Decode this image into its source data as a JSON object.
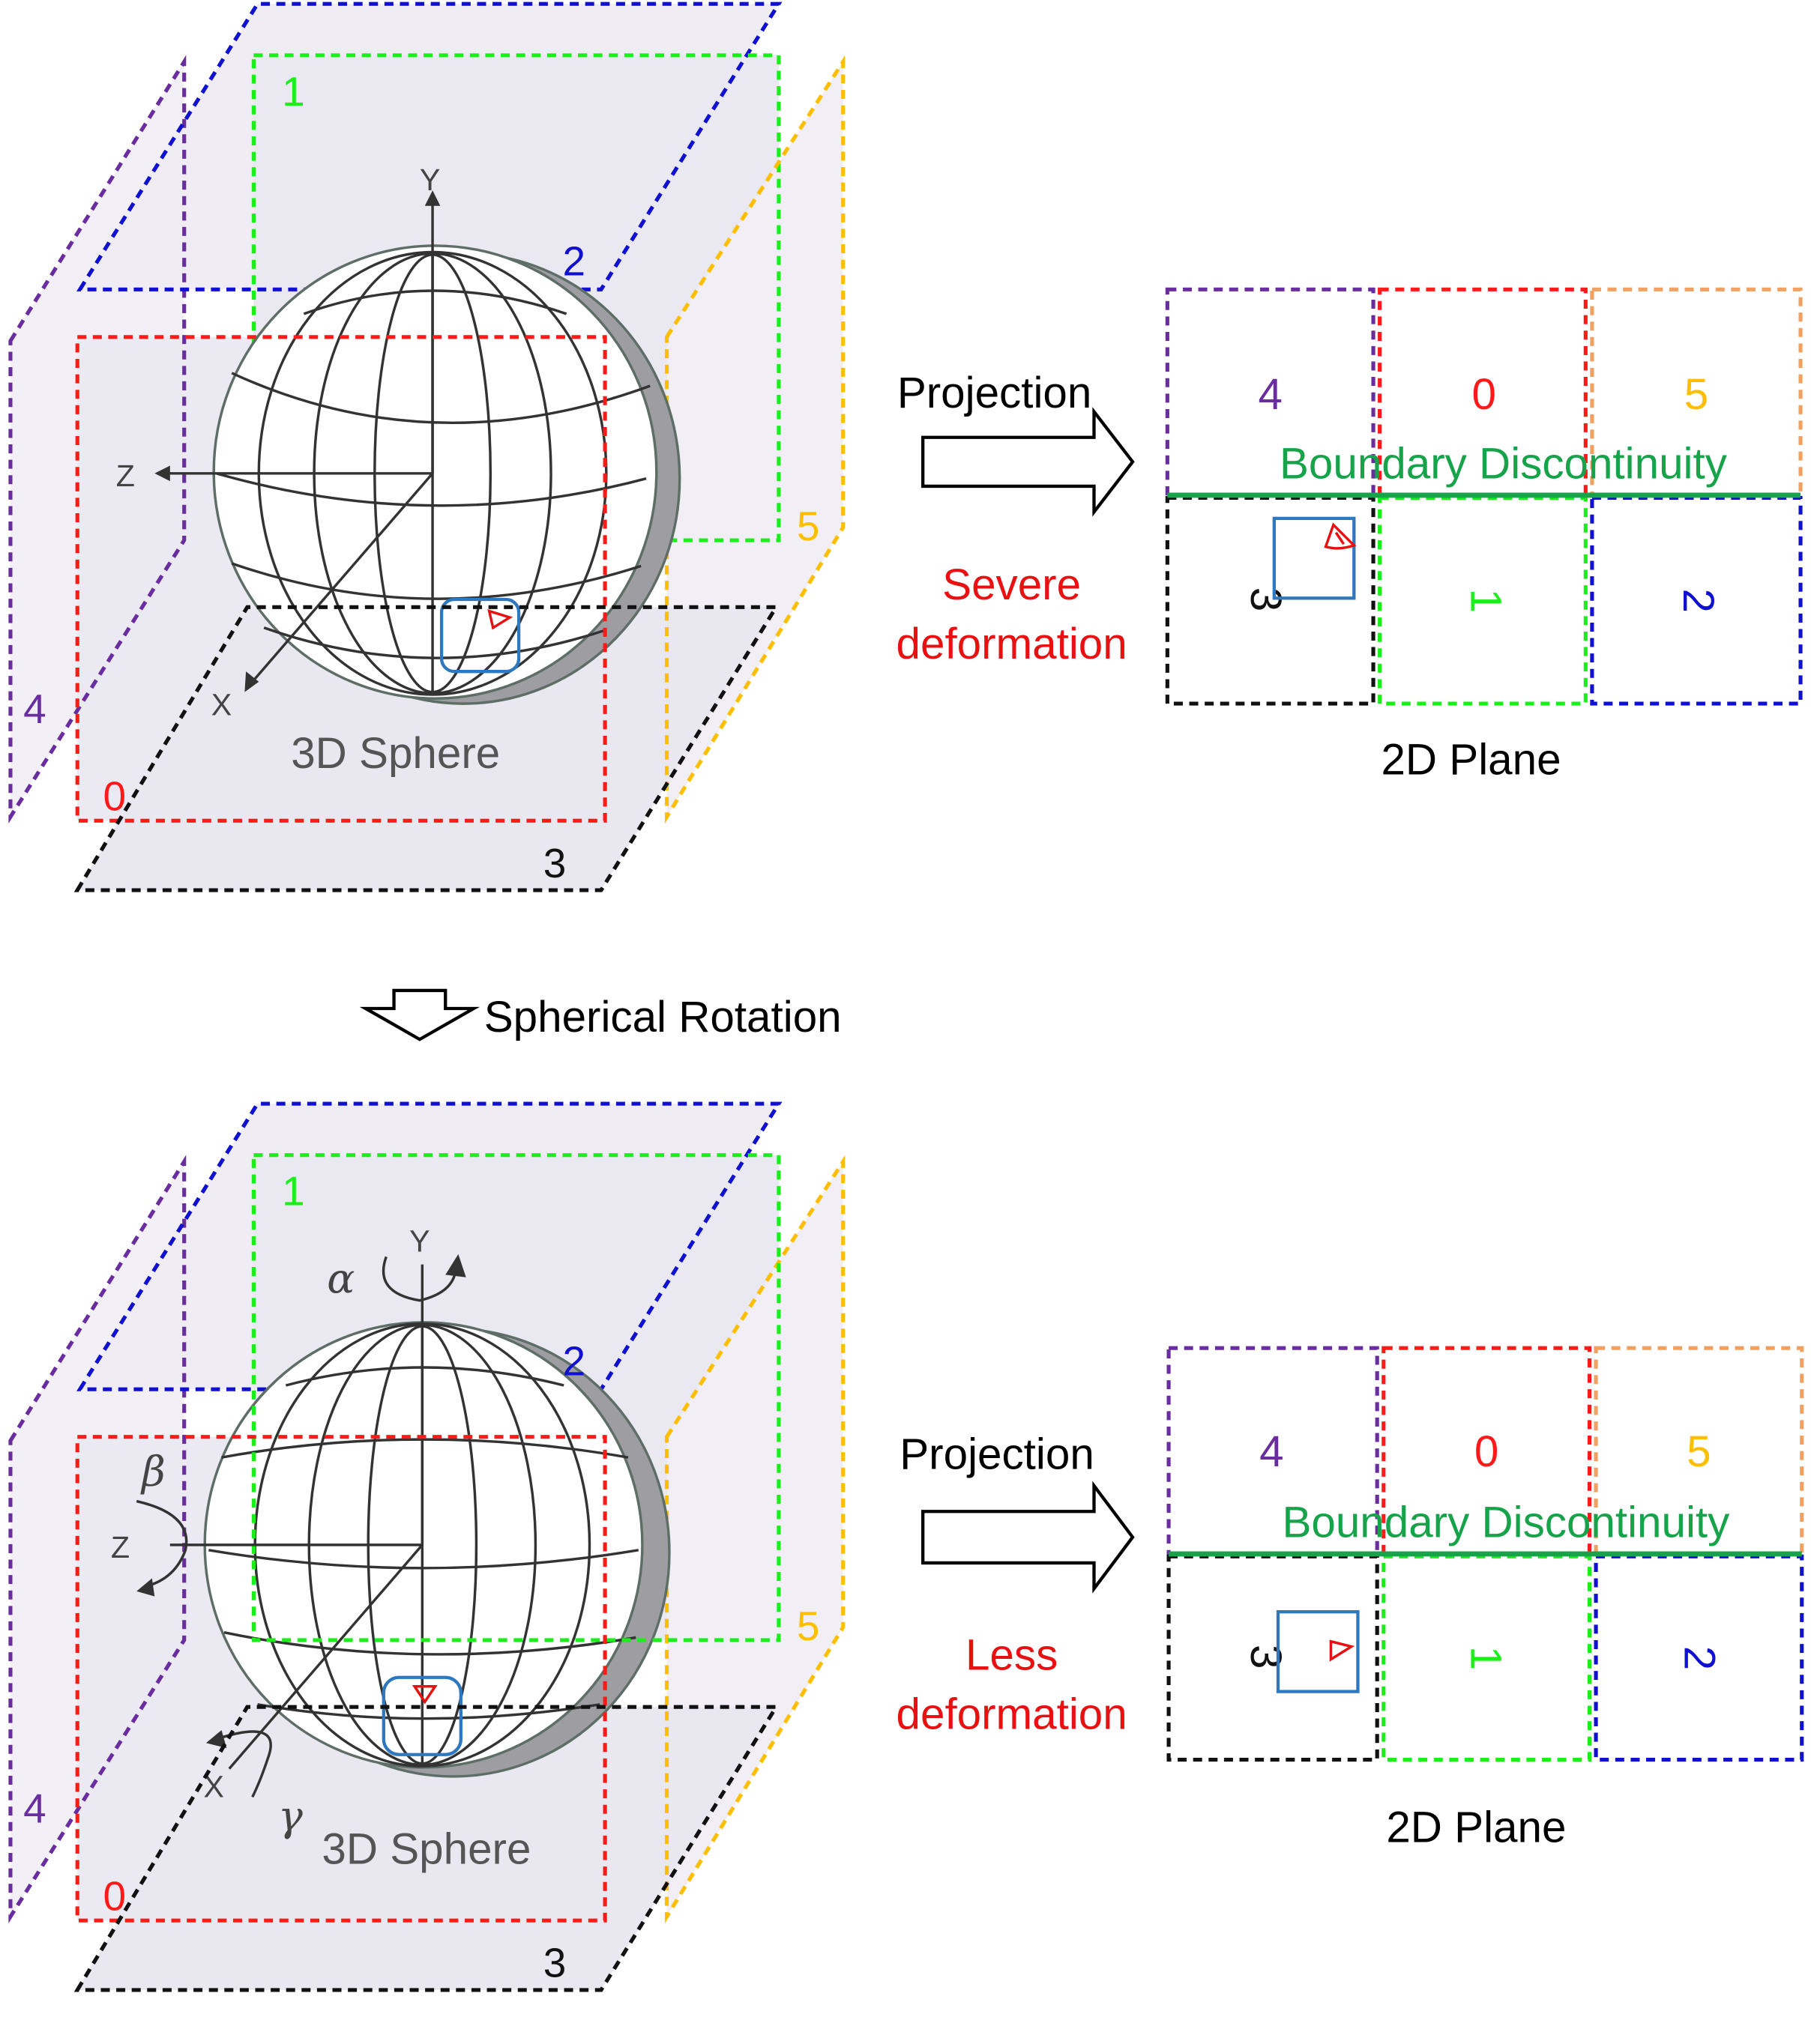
{
  "labels": {
    "projection": "Projection",
    "boundary_discontinuity": "Boundary Discontinuity",
    "severe_deformation_line1": "Severe",
    "severe_deformation_line2": "deformation",
    "less_deformation_line1": "Less",
    "less_deformation_line2": "deformation",
    "sphere_caption": "3D Sphere",
    "plane_caption": "2D Plane",
    "spherical_rotation": "Spherical Rotation"
  },
  "axes": {
    "y": "Y",
    "z": "Z",
    "x": "X"
  },
  "rotation_symbols": {
    "alpha": "α",
    "beta": "β",
    "gamma": "γ"
  },
  "faces": {
    "f0": "0",
    "f1": "1",
    "f2": "2",
    "f3": "3",
    "f4": "4",
    "f5": "5"
  },
  "colors": {
    "face0": "#ff1a1a",
    "face1": "#1aef1a",
    "face2": "#1010d0",
    "face3": "#111111",
    "face4": "#6a2d9f",
    "face5": "#ffbf00",
    "face5_plane": "#f0a060",
    "boundary": "#16a34a",
    "deformation_text": "#e81010",
    "object_box": "#2e78c0",
    "object_marker": "#e81010"
  }
}
